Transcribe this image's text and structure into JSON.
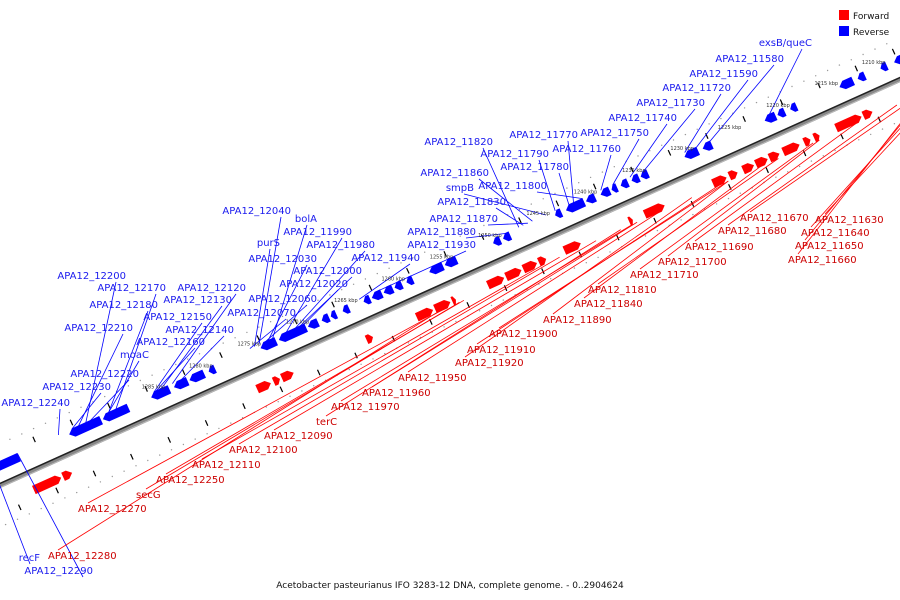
{
  "caption": "Acetobacter pasteurianus IFO 3283-12 DNA, complete genome. - 0..2904624",
  "legend": [
    {
      "label": "Forward",
      "color": "#ff0000"
    },
    {
      "label": "Reverse",
      "color": "#0000ff"
    }
  ],
  "colors": {
    "forward": "#ff0000",
    "reverse": "#0000ff",
    "forward_label": "#cc0000",
    "reverse_label": "#1a1aee",
    "axis": "#555555"
  },
  "scale_ticks": [
    "1210 kbp",
    "1215 kbp",
    "1220 kbp",
    "1225 kbp",
    "1230 kbp",
    "1235 kbp",
    "1240 kbp",
    "1245 kbp",
    "1250 kbp",
    "1255 kbp",
    "1260 kbp",
    "1265 kbp",
    "1270 kbp",
    "1275 kbp",
    "1280 kbp",
    "1285 kbp"
  ],
  "reverse_labels": [
    "exsB/queC",
    "APA12_11580",
    "APA12_11590",
    "APA12_11720",
    "APA12_11730",
    "APA12_11740",
    "APA12_11750",
    "APA12_11760",
    "APA12_11770",
    "APA12_11790",
    "APA12_11780",
    "APA12_11820",
    "APA12_11860",
    "smpB",
    "APA12_11800",
    "APA12_11830",
    "APA12_11870",
    "APA12_11880",
    "APA12_12040",
    "bolA",
    "APA12_11990",
    "purS",
    "APA12_11980",
    "APA12_11930",
    "APA12_12030",
    "APA12_12000",
    "APA12_11940",
    "APA12_12020",
    "APA12_12060",
    "APA12_12070",
    "APA12_12200",
    "APA12_12170",
    "APA12_12120",
    "APA12_12180",
    "APA12_12130",
    "APA12_12150",
    "APA12_12210",
    "APA12_12140",
    "APA12_12160",
    "moaC",
    "APA12_12220",
    "APA12_12230",
    "APA12_12240",
    "recF",
    "APA12_12290"
  ],
  "forward_labels": [
    "APA12_11630",
    "APA12_11670",
    "APA12_11640",
    "APA12_11680",
    "APA12_11650",
    "APA12_11690",
    "APA12_11660",
    "APA12_11700",
    "APA12_11710",
    "APA12_11810",
    "APA12_11840",
    "APA12_11890",
    "APA12_11900",
    "APA12_11910",
    "APA12_11920",
    "APA12_11950",
    "APA12_11960",
    "APA12_11970",
    "terC",
    "APA12_12090",
    "APA12_12100",
    "APA12_12110",
    "APA12_12250",
    "secG",
    "APA12_12270",
    "APA12_12280"
  ]
}
